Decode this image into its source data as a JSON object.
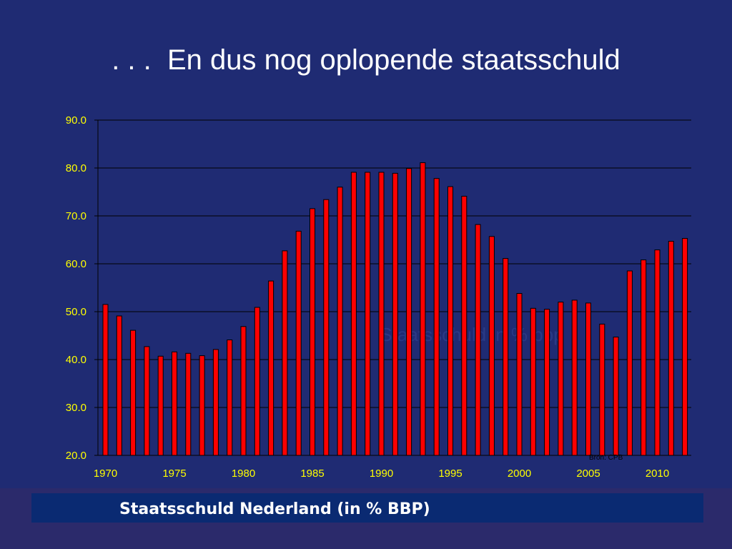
{
  "title": ". . .  En dus nog oplopende staatsschuld",
  "caption": "Staatsschuld Nederland (in % BBP)",
  "chart_data": {
    "type": "bar",
    "x": [
      1970,
      1971,
      1972,
      1973,
      1974,
      1975,
      1976,
      1977,
      1978,
      1979,
      1980,
      1981,
      1982,
      1983,
      1984,
      1985,
      1986,
      1987,
      1988,
      1989,
      1990,
      1991,
      1992,
      1993,
      1994,
      1995,
      1996,
      1997,
      1998,
      1999,
      2000,
      2001,
      2002,
      2003,
      2004,
      2005,
      2006,
      2007,
      2008,
      2009,
      2010,
      2011,
      2012
    ],
    "values": [
      51.5,
      49.1,
      46.1,
      42.7,
      40.7,
      41.6,
      41.3,
      40.8,
      42.1,
      44.1,
      46.9,
      50.9,
      56.4,
      62.7,
      66.8,
      71.5,
      73.4,
      76.0,
      79.1,
      79.1,
      79.1,
      78.9,
      79.9,
      81.1,
      77.8,
      76.1,
      74.1,
      68.2,
      65.7,
      61.1,
      53.8,
      50.7,
      50.5,
      52.0,
      52.4,
      51.8,
      47.4,
      44.7,
      58.5,
      60.8,
      62.9,
      64.7,
      65.3
    ],
    "ylim": [
      20,
      90
    ],
    "yticks": [
      "20.0",
      "30.0",
      "40.0",
      "50.0",
      "60.0",
      "70.0",
      "80.0",
      "90.0"
    ],
    "xticks": [
      "1970",
      "1975",
      "1980",
      "1985",
      "1990",
      "1995",
      "2000",
      "2005",
      "2010"
    ],
    "grid": true,
    "watermark": "Staatsschuld in % bbp",
    "source_note": "Bron: CPB",
    "colors": {
      "bar_fill": "#ff0000",
      "bar_stroke": "#000000",
      "tick_label": "#ffff00",
      "grid": "#000000",
      "watermark": "#2a3a86",
      "source_note": "#000000"
    }
  }
}
